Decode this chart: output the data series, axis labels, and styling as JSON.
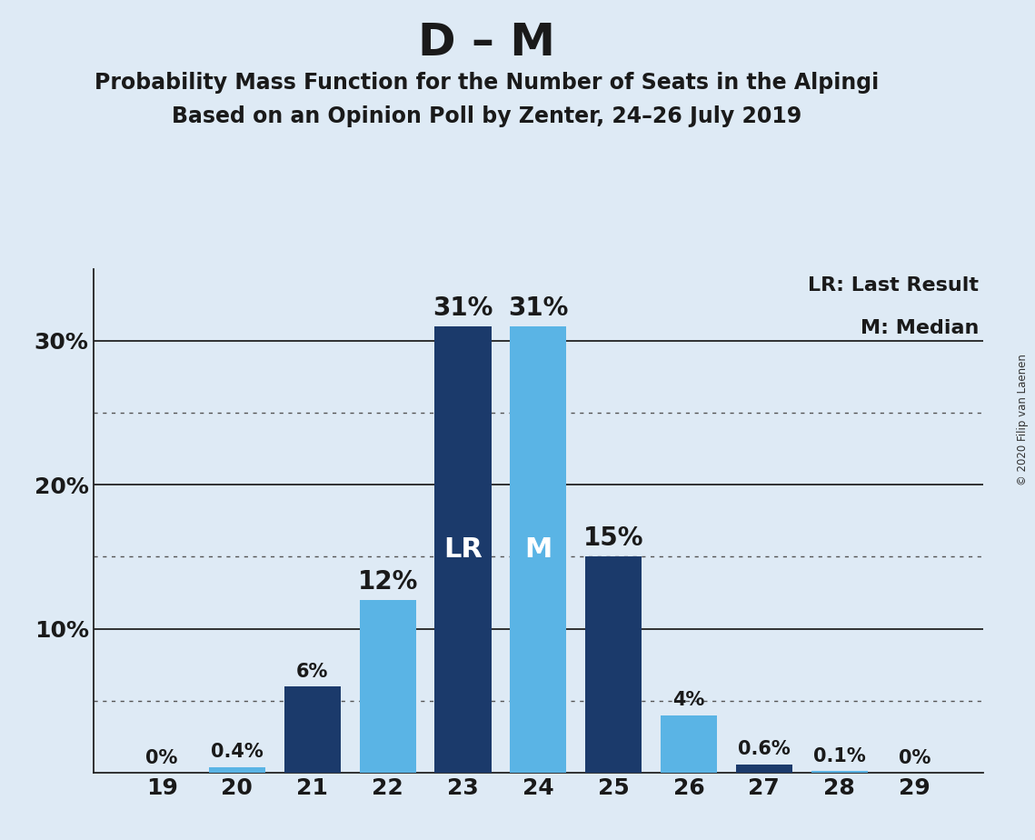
{
  "title": "D – M",
  "subtitle1": "Probability Mass Function for the Number of Seats in the Alpingi",
  "subtitle2": "Based on an Opinion Poll by Zenter, 24–26 July 2019",
  "copyright": "© 2020 Filip van Laenen",
  "seats": [
    19,
    20,
    21,
    22,
    23,
    24,
    25,
    26,
    27,
    28,
    29
  ],
  "probabilities": [
    0.0,
    0.4,
    6.0,
    12.0,
    31.0,
    31.0,
    15.0,
    4.0,
    0.6,
    0.1,
    0.0
  ],
  "bar_labels": [
    "0%",
    "0.4%",
    "6%",
    "12%",
    "31%",
    "31%",
    "15%",
    "4%",
    "0.6%",
    "0.1%",
    "0%"
  ],
  "bar_label_fontsize_small": 15,
  "bar_label_fontsize_large": 20,
  "last_result": 23,
  "median": 24,
  "color_dark": "#1b3a6b",
  "color_light": "#5ab4e5",
  "background_color": "#deeaf5",
  "legend_lr": "LR: Last Result",
  "legend_m": "M: Median",
  "ylim": [
    0,
    35
  ],
  "ytick_vals": [
    10,
    20,
    30
  ],
  "ytick_labels": [
    "10%",
    "20%",
    "30%"
  ],
  "solid_lines": [
    10,
    20,
    30
  ],
  "dotted_lines": [
    5,
    15,
    25
  ],
  "bar_colors": [
    "#1b3a6b",
    "#5ab4e5",
    "#1b3a6b",
    "#5ab4e5",
    "#1b3a6b",
    "#5ab4e5",
    "#1b3a6b",
    "#5ab4e5",
    "#1b3a6b",
    "#5ab4e5",
    "#1b3a6b"
  ],
  "title_fontsize": 36,
  "subtitle_fontsize": 17,
  "tick_fontsize": 18,
  "legend_fontsize": 16,
  "lr_m_fontsize": 22
}
